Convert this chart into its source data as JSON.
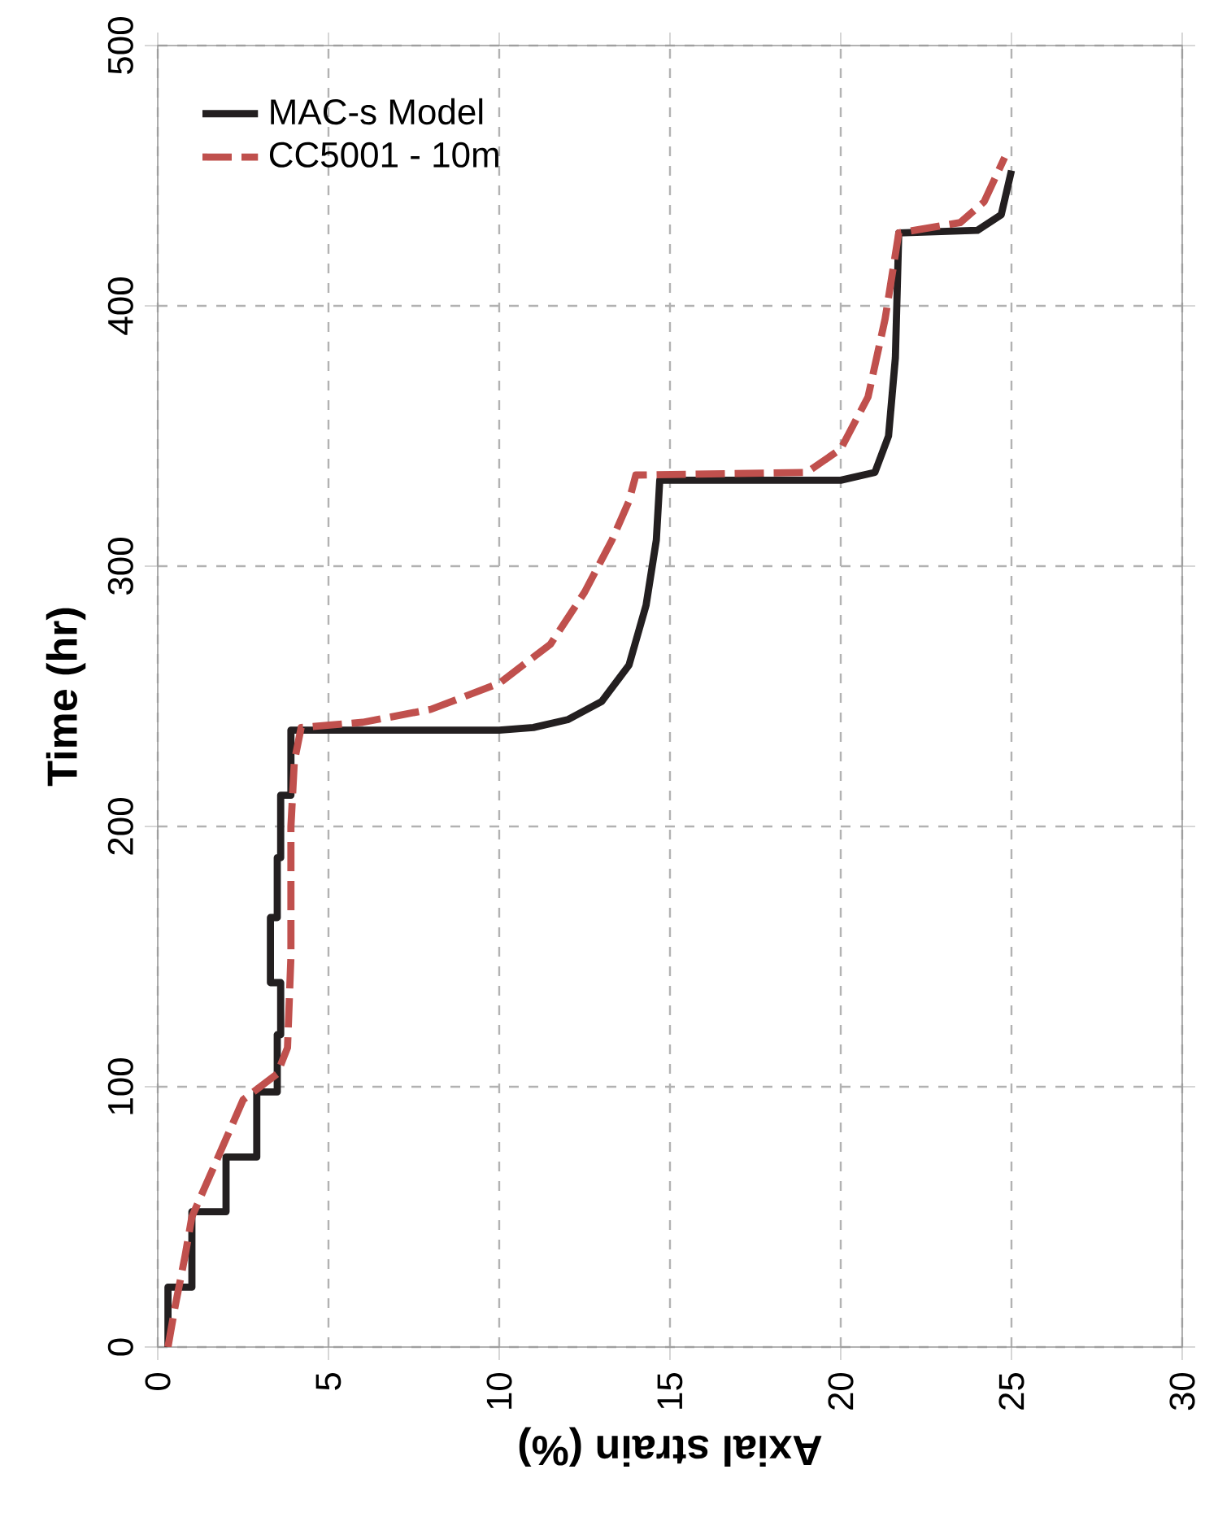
{
  "chart_data": {
    "type": "line",
    "xlabel": "Axial strain (%)",
    "ylabel": "Time (hr)",
    "xlim": [
      0,
      30
    ],
    "xticks": [
      0,
      5,
      10,
      15,
      20,
      25,
      30
    ],
    "ylim": [
      0,
      500
    ],
    "yticks": [
      0,
      100,
      200,
      300,
      400,
      500
    ],
    "grid": true,
    "legend": "top left",
    "marker": "none",
    "series": [
      {
        "name": "MAC-s Model",
        "color": "#231f20",
        "line_style": "solid",
        "x": [
          0.3,
          0.3,
          1.0,
          1.0,
          2.0,
          2.0,
          2.9,
          2.9,
          3.5,
          3.5,
          3.6,
          3.6,
          3.3,
          3.3,
          3.5,
          3.5,
          3.6,
          3.6,
          3.9,
          3.9,
          10,
          11,
          12,
          13,
          13.8,
          14.3,
          14.6,
          14.7,
          20,
          21,
          21.4,
          21.6,
          21.7,
          24,
          24.7,
          25
        ],
        "values": [
          0,
          23,
          23,
          52,
          52,
          73,
          73,
          98,
          98,
          120,
          120,
          140,
          140,
          165,
          165,
          188,
          188,
          212,
          212,
          237,
          237,
          238,
          241,
          248,
          262,
          285,
          310,
          333,
          333,
          336,
          350,
          380,
          428,
          429,
          435,
          452
        ]
      },
      {
        "name": "CC5001 - 10m",
        "color": "#c0504d",
        "line_style": "dashed",
        "x": [
          0.3,
          0.5,
          0.8,
          1.0,
          1.5,
          2.0,
          2.5,
          3.0,
          3.5,
          3.8,
          3.9,
          3.9,
          4.0,
          4.2,
          6,
          8,
          10,
          11.5,
          12.5,
          13.3,
          13.8,
          14.0,
          19,
          20,
          20.8,
          21.3,
          21.7,
          23.5,
          24.2,
          24.8
        ],
        "values": [
          0,
          15,
          35,
          50,
          65,
          80,
          95,
          100,
          105,
          115,
          150,
          200,
          225,
          238,
          240,
          245,
          255,
          270,
          290,
          310,
          325,
          335,
          336,
          345,
          365,
          395,
          428,
          432,
          440,
          457
        ]
      }
    ]
  }
}
